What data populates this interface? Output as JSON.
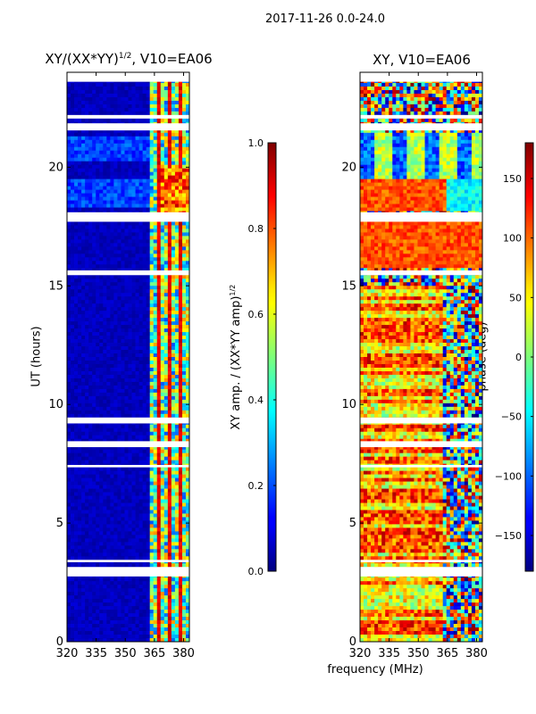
{
  "suptitle": "2017-11-26 0.0-24.0",
  "chart_data": [
    {
      "type": "heatmap",
      "title_base": "XY/(XX*YY)",
      "title_sup": "1/2",
      "title_suffix": ", V10=EA06",
      "xlabel": "",
      "ylabel": "UT (hours)",
      "xlim": [
        320,
        383
      ],
      "ylim": [
        0,
        24
      ],
      "xticks": [
        "320",
        "335",
        "350",
        "365",
        "380"
      ],
      "xtick_values": [
        320,
        335,
        350,
        365,
        380
      ],
      "yticks": [
        "0",
        "5",
        "10",
        "15",
        "20"
      ],
      "ytick_values": [
        0,
        5,
        10,
        15,
        20
      ],
      "colorbar": {
        "label_base": "XY amp. / (XX*YY amp)",
        "label_sup": "1/2",
        "range": [
          0.0,
          1.0
        ],
        "ticks": [
          "0.0",
          "0.2",
          "0.4",
          "0.6",
          "0.8",
          "1.0"
        ],
        "tick_values": [
          0.0,
          0.2,
          0.4,
          0.6,
          0.8,
          1.0
        ]
      },
      "colormap": "jet"
    },
    {
      "type": "heatmap",
      "title": "XY, V10=EA06",
      "xlabel": "frequency (MHz)",
      "ylabel": "",
      "xlim": [
        320,
        383
      ],
      "ylim": [
        0,
        24
      ],
      "xticks": [
        "320",
        "335",
        "350",
        "365",
        "380"
      ],
      "xtick_values": [
        320,
        335,
        350,
        365,
        380
      ],
      "yticks": [
        "0",
        "5",
        "10",
        "15",
        "20"
      ],
      "ytick_values": [
        0,
        5,
        10,
        15,
        20
      ],
      "colorbar": {
        "label": "phase (deg)",
        "range": [
          -180,
          180
        ],
        "ticks": [
          "−150",
          "−100",
          "−50",
          "0",
          "50",
          "100",
          "150"
        ],
        "tick_values": [
          -150,
          -100,
          -50,
          0,
          50,
          100,
          150
        ]
      },
      "colormap": "jet"
    }
  ],
  "data_gaps_hours": [
    [
      2.75,
      3.15
    ],
    [
      3.35,
      3.45
    ],
    [
      7.35,
      7.45
    ],
    [
      8.2,
      8.45
    ],
    [
      9.2,
      9.45
    ],
    [
      15.45,
      15.65
    ],
    [
      17.7,
      18.1
    ],
    [
      21.55,
      21.85
    ],
    [
      22.05,
      22.2
    ],
    [
      23.6,
      24.0
    ]
  ]
}
